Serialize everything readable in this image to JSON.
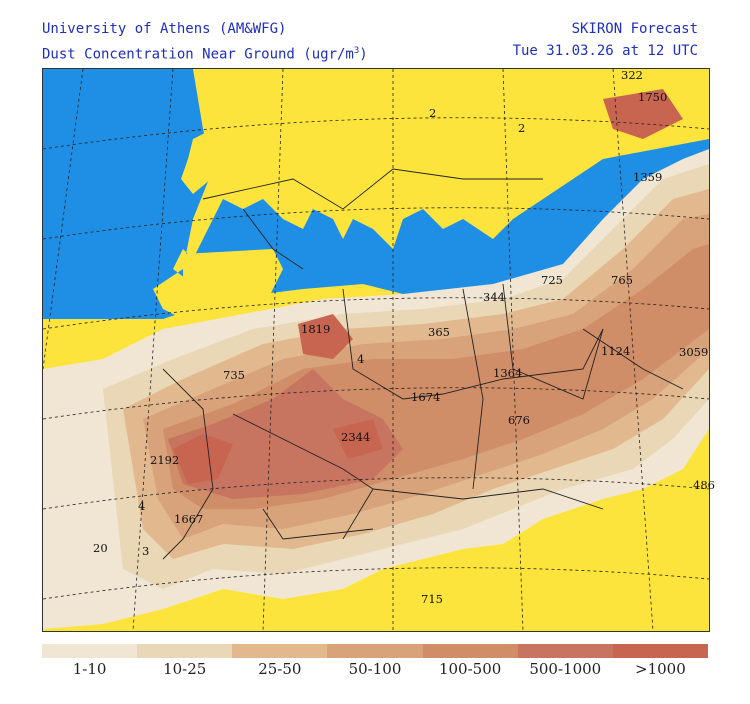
{
  "header": {
    "org_line": "University of Athens (AM&WFG)",
    "subtitle_text": "Dust Concentration Near Ground (ugr/m",
    "subtitle_exp": "3",
    "subtitle_close": ")",
    "product": "SKIRON Forecast",
    "valid_time": "Tue 31.03.26 at 12 UTC"
  },
  "colors": {
    "sea": "#1f8fe6",
    "land_clean": "#fde43c",
    "c_1_10": "#f1e6d3",
    "c_10_25": "#e9d7b6",
    "c_25_50": "#e2b98f",
    "c_50_100": "#d8a27a",
    "c_100_500": "#cf8d68",
    "c_500_1000": "#c77560",
    "c_gt_1000": "#c86550"
  },
  "map_values": [
    "322",
    "1750",
    "2",
    "2",
    "1359",
    "765",
    "725",
    "344",
    "1819",
    "365",
    "1124",
    "3059",
    "735",
    "1364",
    "1674",
    "676",
    "4",
    "2344",
    "2192",
    "4",
    "1667",
    "486",
    "20",
    "3",
    "715"
  ],
  "legend": {
    "labels": [
      "1-10",
      "10-25",
      "25-50",
      "50-100",
      "100-500",
      "500-1000",
      ">1000"
    ]
  }
}
